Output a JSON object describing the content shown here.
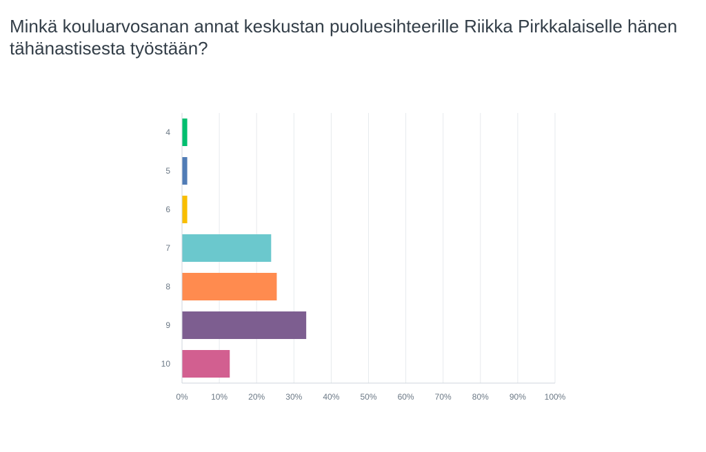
{
  "title": "Minkä kouluarvosanan annat keskustan puoluesihteerille Riikka Pirkkalaiselle hänen tähänastisesta työstään?",
  "chart_data": {
    "type": "bar",
    "orientation": "horizontal",
    "title": "Minkä kouluarvosanan annat keskustan puoluesihteerille Riikka Pirkkalaiselle hänen tähänastisesta työstään?",
    "xlabel": "",
    "ylabel": "",
    "categories": [
      "4",
      "5",
      "6",
      "7",
      "8",
      "9",
      "10"
    ],
    "values": [
      1.4,
      1.4,
      1.4,
      23.9,
      25.4,
      33.3,
      12.8
    ],
    "colors": [
      "#00bf6f",
      "#507cb6",
      "#f9be00",
      "#6bc8cd",
      "#ff8b4f",
      "#7d5e90",
      "#d25f90"
    ],
    "xlim": [
      0,
      100
    ],
    "x_ticks": [
      "0%",
      "10%",
      "20%",
      "30%",
      "40%",
      "50%",
      "60%",
      "70%",
      "80%",
      "90%",
      "100%"
    ],
    "grid": true,
    "legend": "none"
  }
}
